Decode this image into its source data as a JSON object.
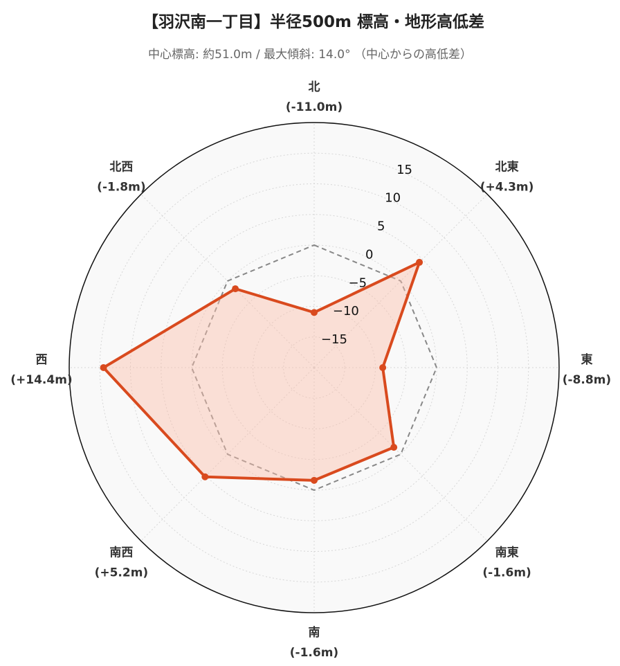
{
  "title": "【羽沢南一丁目】半径500m 標高・地形高低差",
  "subtitle": "中心標高: 約51.0m / 最大傾斜: 14.0° （中心からの高低差）",
  "chart_data": {
    "type": "radar",
    "title": "【羽沢南一丁目】半径500m 標高・地形高低差",
    "subtitle": "中心標高: 約51.0m / 最大傾斜: 14.0° （中心からの高低差）",
    "categories": [
      {
        "name": "北",
        "value_label": "(-11.0m)"
      },
      {
        "name": "北東",
        "value_label": "(+4.3m)"
      },
      {
        "name": "東",
        "value_label": "(-8.8m)"
      },
      {
        "name": "南東",
        "value_label": "(-1.6m)"
      },
      {
        "name": "南",
        "value_label": "(-1.6m)"
      },
      {
        "name": "南西",
        "value_label": "(+5.2m)"
      },
      {
        "name": "西",
        "value_label": "(+14.4m)"
      },
      {
        "name": "北西",
        "value_label": "(-1.8m)"
      }
    ],
    "series": [
      {
        "values": [
          -11.0,
          4.3,
          -8.8,
          -1.6,
          -1.6,
          5.2,
          14.4,
          -1.8
        ],
        "color": "#d94a1e",
        "fill": "rgba(250,190,170,0.45)",
        "style": "solid"
      }
    ],
    "reference": {
      "value": 0,
      "color": "#888888",
      "style": "dashed"
    },
    "radial_range": [
      -20,
      20
    ],
    "radial_ticks": [
      -15,
      -10,
      -5,
      0,
      5,
      10,
      15
    ],
    "grid": true,
    "background": "#f9f9f9"
  }
}
